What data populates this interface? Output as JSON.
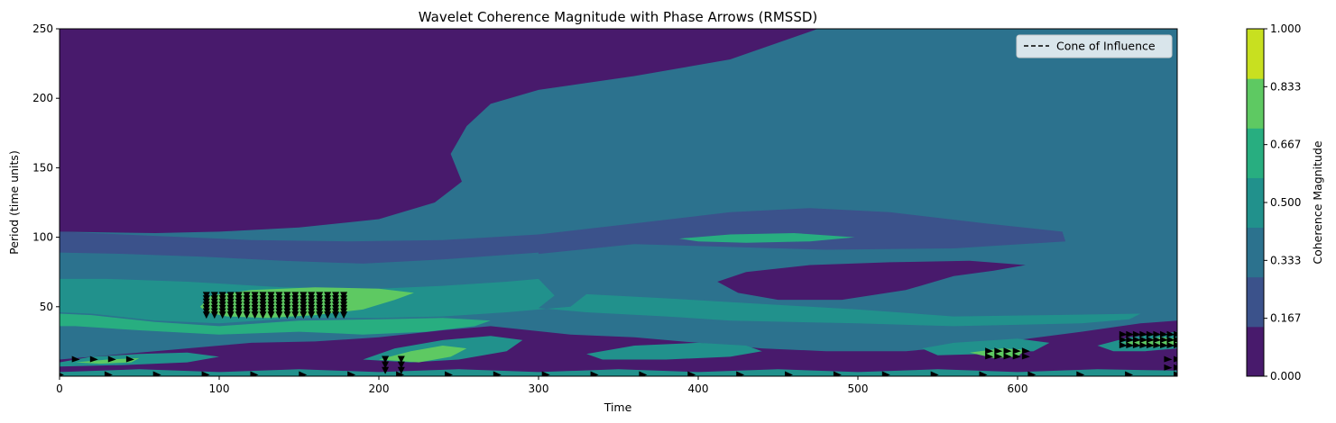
{
  "chart_data": {
    "type": "heatmap",
    "title": "Wavelet Coherence Magnitude with Phase Arrows (RMSSD)",
    "xlabel": "Time",
    "ylabel": "Period (time units)",
    "xlim": [
      0,
      700
    ],
    "ylim": [
      0,
      250
    ],
    "x_ticks": [
      0,
      100,
      200,
      300,
      400,
      500,
      600
    ],
    "y_ticks": [
      50,
      100,
      150,
      200,
      250
    ],
    "legend": {
      "position": "top-right",
      "entries": [
        {
          "label": "Cone of Influence",
          "style": "dashed",
          "color": "#000000"
        }
      ]
    },
    "colorbar": {
      "label": "Coherence Magnitude",
      "ticks": [
        "0.000",
        "0.167",
        "0.333",
        "0.500",
        "0.667",
        "0.833",
        "1.000"
      ],
      "colors": [
        "#481a6c",
        "#3b528b",
        "#2c728e",
        "#21918c",
        "#28ae80",
        "#5ec962",
        "#c8e020"
      ]
    },
    "regions": [
      {
        "level": 1,
        "points": [
          [
            0,
            104
          ],
          [
            60,
            101
          ],
          [
            120,
            98
          ],
          [
            180,
            97
          ],
          [
            240,
            98
          ],
          [
            300,
            102
          ],
          [
            360,
            110
          ],
          [
            420,
            118
          ],
          [
            470,
            121
          ],
          [
            520,
            118
          ],
          [
            580,
            110
          ],
          [
            628,
            104
          ],
          [
            630,
            97
          ],
          [
            560,
            92
          ],
          [
            480,
            91
          ],
          [
            420,
            93
          ],
          [
            360,
            95
          ],
          [
            300,
            88
          ],
          [
            240,
            83
          ],
          [
            190,
            80
          ],
          [
            140,
            82
          ],
          [
            90,
            85
          ],
          [
            40,
            87
          ],
          [
            0,
            88
          ]
        ]
      },
      {
        "level": 2,
        "points": [
          [
            0,
            89
          ],
          [
            40,
            88
          ],
          [
            90,
            86
          ],
          [
            140,
            83
          ],
          [
            190,
            81
          ],
          [
            240,
            84
          ],
          [
            300,
            89
          ],
          [
            300,
            76
          ],
          [
            280,
            72
          ],
          [
            240,
            68
          ],
          [
            200,
            65
          ],
          [
            140,
            66
          ],
          [
            80,
            70
          ],
          [
            30,
            72
          ],
          [
            0,
            72
          ]
        ]
      },
      {
        "level": 3,
        "points": [
          [
            0,
            70
          ],
          [
            30,
            70
          ],
          [
            80,
            68
          ],
          [
            140,
            64
          ],
          [
            200,
            63
          ],
          [
            240,
            65
          ],
          [
            280,
            68
          ],
          [
            300,
            70
          ],
          [
            310,
            58
          ],
          [
            300,
            49
          ],
          [
            330,
            46
          ],
          [
            380,
            43
          ],
          [
            420,
            40
          ],
          [
            500,
            38
          ],
          [
            560,
            36
          ],
          [
            640,
            38
          ],
          [
            670,
            41
          ],
          [
            677,
            45
          ],
          [
            620,
            44
          ],
          [
            560,
            43
          ],
          [
            500,
            48
          ],
          [
            440,
            52
          ],
          [
            380,
            56
          ],
          [
            330,
            59
          ],
          [
            320,
            50
          ],
          [
            280,
            46
          ],
          [
            240,
            43
          ],
          [
            200,
            42
          ],
          [
            150,
            42
          ],
          [
            100,
            38
          ],
          [
            60,
            40
          ],
          [
            20,
            45
          ],
          [
            0,
            46
          ]
        ]
      },
      {
        "level": 4,
        "points": [
          [
            0,
            45
          ],
          [
            20,
            44
          ],
          [
            60,
            39
          ],
          [
            100,
            36
          ],
          [
            150,
            40
          ],
          [
            200,
            41
          ],
          [
            240,
            42
          ],
          [
            270,
            40
          ],
          [
            260,
            36
          ],
          [
            230,
            32
          ],
          [
            190,
            30
          ],
          [
            150,
            32
          ],
          [
            100,
            30
          ],
          [
            50,
            33
          ],
          [
            10,
            36
          ],
          [
            0,
            36
          ]
        ]
      },
      {
        "level": 5,
        "points": [
          [
            88,
            50
          ],
          [
            95,
            58
          ],
          [
            120,
            62
          ],
          [
            160,
            64
          ],
          [
            200,
            63
          ],
          [
            222,
            60
          ],
          [
            210,
            55
          ],
          [
            190,
            48
          ],
          [
            160,
            44
          ],
          [
            130,
            42
          ],
          [
            105,
            43
          ],
          [
            92,
            46
          ]
        ]
      },
      {
        "level": 4,
        "points": [
          [
            388,
            99
          ],
          [
            420,
            102
          ],
          [
            460,
            103
          ],
          [
            498,
            100
          ],
          [
            470,
            97
          ],
          [
            430,
            96
          ],
          [
            400,
            97
          ]
        ]
      },
      {
        "level": 0,
        "points": [
          [
            0,
            250
          ],
          [
            475,
            250
          ],
          [
            420,
            228
          ],
          [
            360,
            216
          ],
          [
            300,
            206
          ],
          [
            270,
            196
          ],
          [
            255,
            180
          ],
          [
            245,
            160
          ],
          [
            252,
            140
          ],
          [
            235,
            125
          ],
          [
            200,
            113
          ],
          [
            150,
            107
          ],
          [
            100,
            104
          ],
          [
            60,
            103
          ],
          [
            0,
            104
          ]
        ]
      },
      {
        "level": 0,
        "points": [
          [
            412,
            68
          ],
          [
            430,
            75
          ],
          [
            470,
            80
          ],
          [
            520,
            82
          ],
          [
            570,
            83
          ],
          [
            605,
            80
          ],
          [
            585,
            76
          ],
          [
            560,
            72
          ],
          [
            530,
            62
          ],
          [
            490,
            55
          ],
          [
            450,
            55
          ],
          [
            425,
            60
          ]
        ]
      },
      {
        "level": 0,
        "points": [
          [
            0,
            12
          ],
          [
            20,
            14
          ],
          [
            60,
            18
          ],
          [
            100,
            22
          ],
          [
            120,
            24
          ],
          [
            160,
            25
          ],
          [
            200,
            28
          ],
          [
            240,
            33
          ],
          [
            270,
            36
          ],
          [
            320,
            30
          ],
          [
            360,
            28
          ],
          [
            400,
            24
          ],
          [
            440,
            20
          ],
          [
            480,
            18
          ],
          [
            530,
            18
          ],
          [
            570,
            22
          ],
          [
            600,
            26
          ],
          [
            640,
            32
          ],
          [
            677,
            38
          ],
          [
            700,
            40
          ],
          [
            700,
            0
          ],
          [
            0,
            0
          ]
        ]
      },
      {
        "level": 3,
        "points": [
          [
            540,
            20
          ],
          [
            560,
            24
          ],
          [
            600,
            27
          ],
          [
            620,
            24
          ],
          [
            610,
            18
          ],
          [
            580,
            16
          ],
          [
            550,
            15
          ]
        ]
      },
      {
        "level": 5,
        "points": [
          [
            570,
            17
          ],
          [
            590,
            20
          ],
          [
            605,
            19
          ],
          [
            600,
            14
          ],
          [
            585,
            13
          ]
        ]
      },
      {
        "level": 3,
        "points": [
          [
            330,
            16
          ],
          [
            360,
            22
          ],
          [
            400,
            24
          ],
          [
            430,
            22
          ],
          [
            440,
            18
          ],
          [
            420,
            14
          ],
          [
            380,
            12
          ],
          [
            340,
            12
          ]
        ]
      },
      {
        "level": 3,
        "points": [
          [
            190,
            12
          ],
          [
            210,
            20
          ],
          [
            240,
            26
          ],
          [
            270,
            29
          ],
          [
            290,
            26
          ],
          [
            280,
            18
          ],
          [
            250,
            12
          ],
          [
            220,
            10
          ]
        ]
      },
      {
        "level": 5,
        "points": [
          [
            200,
            12
          ],
          [
            220,
            18
          ],
          [
            240,
            22
          ],
          [
            255,
            20
          ],
          [
            245,
            14
          ],
          [
            225,
            10
          ]
        ]
      },
      {
        "level": 3,
        "points": [
          [
            0,
            10
          ],
          [
            20,
            14
          ],
          [
            50,
            16
          ],
          [
            80,
            17
          ],
          [
            100,
            14
          ],
          [
            80,
            10
          ],
          [
            40,
            8
          ],
          [
            0,
            7
          ]
        ]
      },
      {
        "level": 5,
        "points": [
          [
            10,
            10
          ],
          [
            30,
            12
          ],
          [
            50,
            13
          ],
          [
            45,
            10
          ],
          [
            25,
            9
          ]
        ]
      },
      {
        "level": 3,
        "points": [
          [
            650,
            22
          ],
          [
            670,
            28
          ],
          [
            700,
            32
          ],
          [
            700,
            20
          ],
          [
            680,
            18
          ],
          [
            660,
            18
          ]
        ]
      },
      {
        "level": 5,
        "points": [
          [
            665,
            24
          ],
          [
            690,
            28
          ],
          [
            700,
            27
          ],
          [
            700,
            22
          ],
          [
            685,
            21
          ]
        ]
      },
      {
        "level": 3,
        "points": [
          [
            0,
            0
          ],
          [
            700,
            0
          ],
          [
            700,
            4
          ],
          [
            650,
            5
          ],
          [
            600,
            3
          ],
          [
            550,
            5
          ],
          [
            500,
            3
          ],
          [
            450,
            5
          ],
          [
            400,
            3
          ],
          [
            350,
            5
          ],
          [
            300,
            3
          ],
          [
            250,
            5
          ],
          [
            200,
            3
          ],
          [
            150,
            5
          ],
          [
            100,
            3
          ],
          [
            50,
            5
          ],
          [
            0,
            3
          ]
        ]
      }
    ],
    "arrow_clusters": [
      {
        "x_range": [
          92,
          178
        ],
        "y_range": [
          44,
          58
        ],
        "rows": 7,
        "cols": 18,
        "direction": "down"
      },
      {
        "x_range": [
          666,
          700
        ],
        "y_range": [
          22,
          30
        ],
        "rows": 3,
        "cols": 9,
        "direction": "right"
      },
      {
        "x_range": [
          582,
          605
        ],
        "y_range": [
          14,
          18
        ],
        "rows": 2,
        "cols": 5,
        "direction": "right"
      },
      {
        "x_range": [
          10,
          44
        ],
        "y_range": [
          12,
          14
        ],
        "rows": 1,
        "cols": 4,
        "direction": "right"
      },
      {
        "x_range": [
          204,
          214
        ],
        "y_range": [
          4,
          12
        ],
        "rows": 3,
        "cols": 2,
        "direction": "down"
      },
      {
        "x_range": [
          694,
          700
        ],
        "y_range": [
          6,
          12
        ],
        "rows": 2,
        "cols": 2,
        "direction": "right"
      },
      {
        "x_range": [
          0,
          700
        ],
        "y_range": [
          1,
          2
        ],
        "rows": 1,
        "cols": 24,
        "direction": "right"
      }
    ]
  }
}
